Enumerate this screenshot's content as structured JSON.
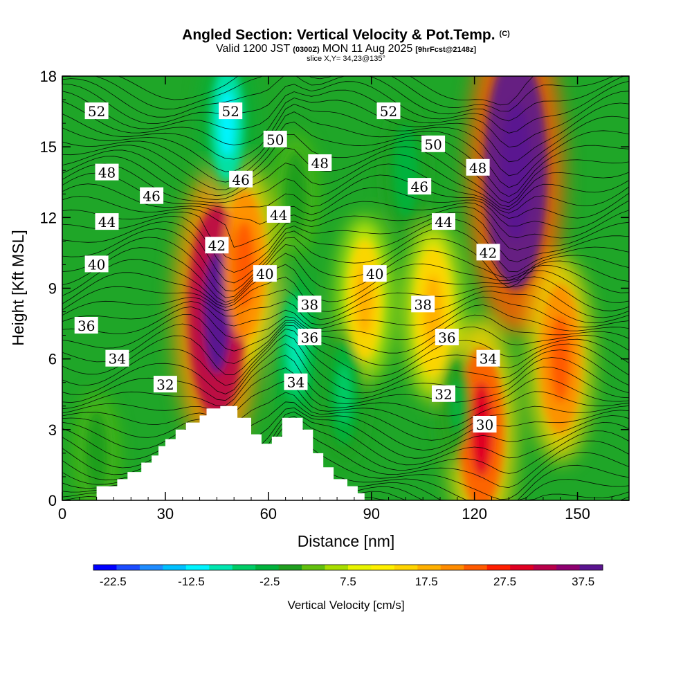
{
  "header": {
    "title": "Angled Section: Vertical Velocity & Pot.Temp.",
    "title_mark": "(C)",
    "valid_prefix": "Valid 1200 JST",
    "valid_utc": "(0300Z)",
    "valid_date": "MON 11 Aug 2025",
    "valid_fcst": "[9hrFcst@2148z]",
    "slice": "slice X,Y= 34,23@135°"
  },
  "axes": {
    "xlabel": "Distance [nm]",
    "ylabel": "Height [Kft MSL]",
    "xticks": [
      "0",
      "30",
      "60",
      "90",
      "120",
      "150"
    ],
    "yticks": [
      "0",
      "3",
      "6",
      "9",
      "12",
      "15",
      "18"
    ]
  },
  "colorbar": {
    "label": "Vertical Velocity [cm/s]",
    "ticks": [
      "-22.5",
      "-12.5",
      "-2.5",
      "7.5",
      "17.5",
      "27.5",
      "37.5"
    ],
    "colors": [
      "#0000ff",
      "#1c4cff",
      "#1f8cff",
      "#00c0ff",
      "#00f4ff",
      "#00e6b0",
      "#00cc66",
      "#00b23c",
      "#1f9e1f",
      "#62c00e",
      "#a8de00",
      "#e8f400",
      "#fff000",
      "#ffd400",
      "#ffb000",
      "#ff8c00",
      "#ff5a00",
      "#ff1e00",
      "#e00022",
      "#b8004a",
      "#8e0070",
      "#5a1490"
    ]
  },
  "chart_data": {
    "type": "heatmap",
    "title": "Angled Section: Vertical Velocity & Pot.Temp. (C)",
    "subtitle": "Valid 1200 JST (0300Z) MON 11 Aug 2025 [9hrFcst@2148z]",
    "annotation": "slice X,Y= 34,23@135°",
    "xlabel": "Distance [nm]",
    "ylabel": "Height [Kft MSL]",
    "xlim": [
      0,
      165
    ],
    "ylim": [
      0,
      18
    ],
    "colorbar_label": "Vertical Velocity [cm/s]",
    "colorbar_range": [
      -25,
      40
    ],
    "colorbar_step": 2.5,
    "w_features": [
      {
        "x": 45,
        "y": 8,
        "w": 32,
        "note": "updraft"
      },
      {
        "x": 132,
        "y": 14,
        "w": 38,
        "note": "updraft"
      },
      {
        "x": 53,
        "y": 10,
        "w": 17,
        "note": "updraft"
      },
      {
        "x": 122,
        "y": 3,
        "w": 20,
        "note": "updraft"
      },
      {
        "x": 145,
        "y": 6,
        "w": 17,
        "note": "updraft"
      },
      {
        "x": 88,
        "y": 8.5,
        "w": 10,
        "note": "updraft"
      },
      {
        "x": 108,
        "y": 8,
        "w": 12,
        "note": "updraft"
      },
      {
        "x": 48,
        "y": 16,
        "w": -15,
        "note": "downdraft"
      },
      {
        "x": 68,
        "y": 6.5,
        "w": -12,
        "note": "downdraft"
      },
      {
        "x": 82,
        "y": 4.5,
        "w": -10,
        "note": "downdraft"
      },
      {
        "x": 68,
        "y": 13,
        "w": -5,
        "note": "downdraft"
      },
      {
        "x": 100,
        "y": 14,
        "w": -7,
        "note": "downdraft"
      },
      {
        "x": 115,
        "y": 4,
        "w": -6,
        "note": "downdraft"
      },
      {
        "x": 10,
        "y": 2,
        "w": -5,
        "note": "downdraft"
      }
    ],
    "terrain": [
      [
        0,
        0
      ],
      [
        10,
        0
      ],
      [
        10,
        0.6
      ],
      [
        16,
        0.6
      ],
      [
        16,
        0.9
      ],
      [
        19,
        0.9
      ],
      [
        19,
        1.2
      ],
      [
        23,
        1.2
      ],
      [
        23,
        1.6
      ],
      [
        26,
        1.6
      ],
      [
        26,
        1.9
      ],
      [
        28,
        1.9
      ],
      [
        28,
        2.3
      ],
      [
        30,
        2.3
      ],
      [
        30,
        2.6
      ],
      [
        33,
        2.6
      ],
      [
        33,
        3.0
      ],
      [
        36,
        3.0
      ],
      [
        36,
        3.3
      ],
      [
        40,
        3.3
      ],
      [
        40,
        3.6
      ],
      [
        42,
        3.6
      ],
      [
        42,
        3.9
      ],
      [
        46,
        3.9
      ],
      [
        46,
        4.0
      ],
      [
        51,
        4.0
      ],
      [
        51,
        3.5
      ],
      [
        55,
        3.5
      ],
      [
        55,
        2.8
      ],
      [
        58,
        2.8
      ],
      [
        58,
        2.4
      ],
      [
        61,
        2.4
      ],
      [
        61,
        2.7
      ],
      [
        64,
        2.7
      ],
      [
        64,
        3.5
      ],
      [
        70,
        3.5
      ],
      [
        70,
        3.0
      ],
      [
        73,
        3.0
      ],
      [
        73,
        2.0
      ],
      [
        76,
        2.0
      ],
      [
        76,
        1.4
      ],
      [
        79,
        1.4
      ],
      [
        79,
        0.9
      ],
      [
        83,
        0.9
      ],
      [
        83,
        0.6
      ],
      [
        86,
        0.6
      ],
      [
        86,
        0.3
      ],
      [
        88,
        0.3
      ],
      [
        88,
        0
      ],
      [
        165,
        0
      ]
    ],
    "theta_levels": [
      30,
      32,
      34,
      36,
      38,
      40,
      42,
      44,
      46,
      48,
      50,
      52
    ],
    "theta_labels": [
      {
        "text": "52",
        "x": 10,
        "y": 16.5
      },
      {
        "text": "52",
        "x": 49,
        "y": 16.5
      },
      {
        "text": "52",
        "x": 95,
        "y": 16.5
      },
      {
        "text": "50",
        "x": 62,
        "y": 15.3
      },
      {
        "text": "50",
        "x": 108,
        "y": 15.1
      },
      {
        "text": "48",
        "x": 13,
        "y": 13.9
      },
      {
        "text": "48",
        "x": 75,
        "y": 14.3
      },
      {
        "text": "48",
        "x": 121,
        "y": 14.1
      },
      {
        "text": "46",
        "x": 26,
        "y": 12.9
      },
      {
        "text": "46",
        "x": 52,
        "y": 13.6
      },
      {
        "text": "46",
        "x": 104,
        "y": 13.3
      },
      {
        "text": "44",
        "x": 13,
        "y": 11.8
      },
      {
        "text": "44",
        "x": 63,
        "y": 12.1
      },
      {
        "text": "44",
        "x": 111,
        "y": 11.8
      },
      {
        "text": "42",
        "x": 45,
        "y": 10.8
      },
      {
        "text": "42",
        "x": 124,
        "y": 10.5
      },
      {
        "text": "40",
        "x": 10,
        "y": 10.0
      },
      {
        "text": "40",
        "x": 59,
        "y": 9.6
      },
      {
        "text": "40",
        "x": 91,
        "y": 9.6
      },
      {
        "text": "38",
        "x": 72,
        "y": 8.3
      },
      {
        "text": "38",
        "x": 105,
        "y": 8.3
      },
      {
        "text": "36",
        "x": 7,
        "y": 7.4
      },
      {
        "text": "36",
        "x": 72,
        "y": 6.9
      },
      {
        "text": "36",
        "x": 112,
        "y": 6.9
      },
      {
        "text": "34",
        "x": 16,
        "y": 6.0
      },
      {
        "text": "34",
        "x": 68,
        "y": 5.0
      },
      {
        "text": "34",
        "x": 124,
        "y": 6.0
      },
      {
        "text": "32",
        "x": 30,
        "y": 4.9
      },
      {
        "text": "32",
        "x": 111,
        "y": 4.5
      },
      {
        "text": "30",
        "x": 123,
        "y": 3.2
      }
    ]
  }
}
